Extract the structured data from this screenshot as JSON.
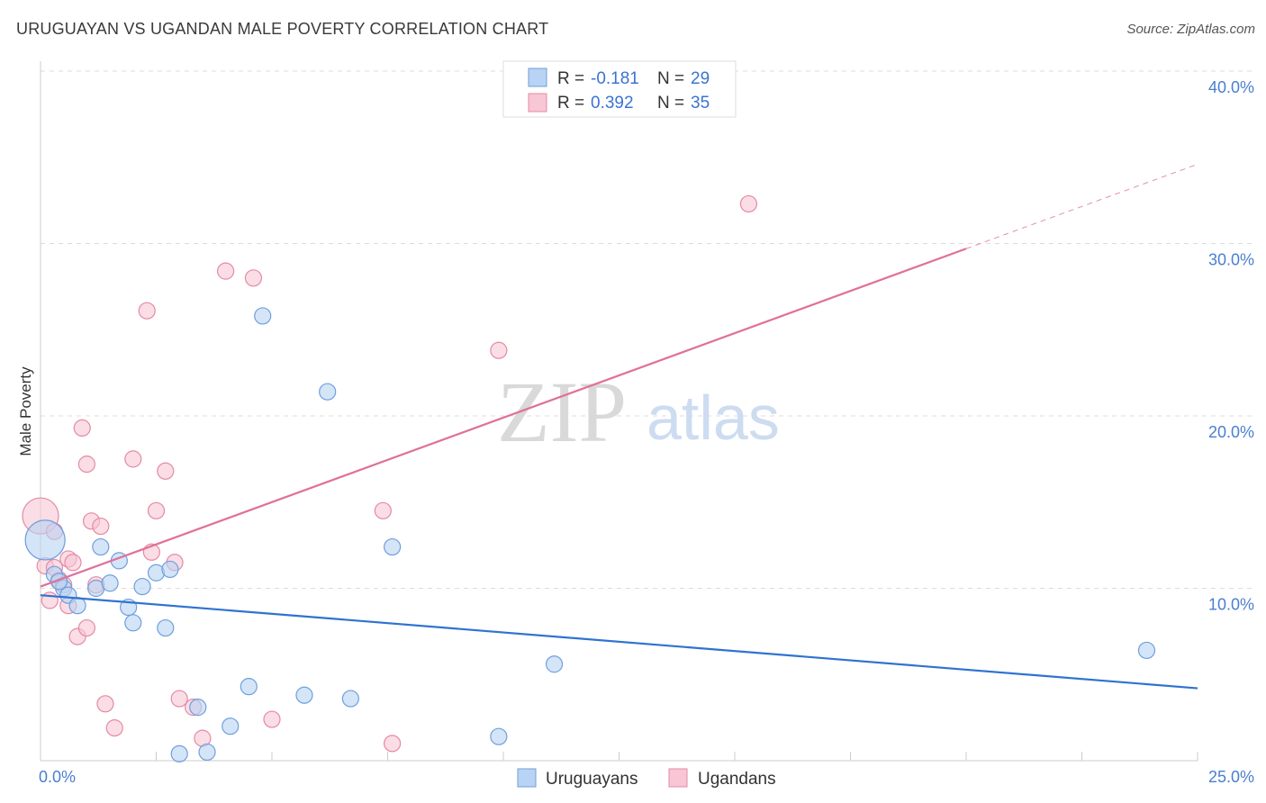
{
  "title": "URUGUAYAN VS UGANDAN MALE POVERTY CORRELATION CHART",
  "source": "Source: ZipAtlas.com",
  "watermark": {
    "zip": "ZIP",
    "atlas": "atlas"
  },
  "colors": {
    "blue_fill": "#b8d3f4",
    "blue_stroke": "#6f9fdc",
    "blue_line": "#2f73d0",
    "pink_fill": "#f8c6d4",
    "pink_stroke": "#e48aa6",
    "pink_line": "#e0709a",
    "grid": "#dddddd",
    "tick_label": "#4a7fd0"
  },
  "legend_box": {
    "rows": [
      {
        "r_label": "R = ",
        "r_value": "-0.181",
        "n_label": "N = ",
        "n_value": "29"
      },
      {
        "r_label": "R = ",
        "r_value": "0.392",
        "n_label": "N = ",
        "n_value": "35"
      }
    ]
  },
  "chart_data": {
    "type": "scatter",
    "title": "URUGUAYAN VS UGANDAN MALE POVERTY CORRELATION CHART",
    "xlabel": "",
    "ylabel": "Male Poverty",
    "xlim": [
      0,
      25
    ],
    "ylim": [
      0,
      40
    ],
    "y_ticks": [
      10,
      20,
      30,
      40
    ],
    "y_tick_labels": [
      "10.0%",
      "20.0%",
      "30.0%",
      "40.0%"
    ],
    "x_tick_labels": [
      "0.0%",
      "25.0%"
    ],
    "series": [
      {
        "name": "Uruguayans",
        "r": -0.181,
        "n": 29,
        "trend": {
          "x0": 0,
          "y0": 9.6,
          "x1": 25,
          "y1": 4.2
        },
        "points": [
          [
            0.1,
            12.8,
            22
          ],
          [
            0.3,
            10.8,
            9
          ],
          [
            0.5,
            10.0,
            9
          ],
          [
            0.6,
            9.6,
            9
          ],
          [
            0.8,
            9.0,
            9
          ],
          [
            1.2,
            10.0,
            9
          ],
          [
            1.3,
            12.4,
            9
          ],
          [
            1.5,
            10.3,
            9
          ],
          [
            1.7,
            11.6,
            9
          ],
          [
            1.9,
            8.9,
            9
          ],
          [
            2.0,
            8.0,
            9
          ],
          [
            2.2,
            10.1,
            9
          ],
          [
            2.5,
            10.9,
            9
          ],
          [
            2.7,
            7.7,
            9
          ],
          [
            2.8,
            11.1,
            9
          ],
          [
            3.0,
            0.4,
            9
          ],
          [
            3.4,
            3.1,
            9
          ],
          [
            3.6,
            0.5,
            9
          ],
          [
            4.1,
            2.0,
            9
          ],
          [
            4.5,
            4.3,
            9
          ],
          [
            4.8,
            25.8,
            9
          ],
          [
            5.7,
            3.8,
            9
          ],
          [
            6.2,
            21.4,
            9
          ],
          [
            6.7,
            3.6,
            9
          ],
          [
            7.6,
            12.4,
            9
          ],
          [
            9.9,
            1.4,
            9
          ],
          [
            11.1,
            5.6,
            9
          ],
          [
            23.9,
            6.4,
            9
          ],
          [
            0.4,
            10.4,
            9
          ]
        ]
      },
      {
        "name": "Ugandans",
        "r": 0.392,
        "n": 35,
        "trend": {
          "x0": 0,
          "y0": 10.1,
          "x1": 20,
          "y1": 29.7
        },
        "trend_dashed": {
          "x0": 20,
          "y0": 29.7,
          "x1": 25,
          "y1": 34.6
        },
        "points": [
          [
            0.0,
            14.2,
            20
          ],
          [
            0.1,
            11.3,
            9
          ],
          [
            0.2,
            9.3,
            9
          ],
          [
            0.3,
            13.3,
            9
          ],
          [
            0.4,
            10.5,
            9
          ],
          [
            0.5,
            10.2,
            9
          ],
          [
            0.6,
            9.0,
            9
          ],
          [
            0.6,
            11.7,
            9
          ],
          [
            0.7,
            11.5,
            9
          ],
          [
            0.8,
            7.2,
            9
          ],
          [
            0.9,
            19.3,
            9
          ],
          [
            1.0,
            17.2,
            9
          ],
          [
            1.0,
            7.7,
            9
          ],
          [
            1.1,
            13.9,
            9
          ],
          [
            1.2,
            10.2,
            9
          ],
          [
            1.3,
            13.6,
            9
          ],
          [
            1.4,
            3.3,
            9
          ],
          [
            1.6,
            1.9,
            9
          ],
          [
            2.0,
            17.5,
            9
          ],
          [
            2.3,
            26.1,
            9
          ],
          [
            2.4,
            12.1,
            9
          ],
          [
            2.5,
            14.5,
            9
          ],
          [
            2.7,
            16.8,
            9
          ],
          [
            2.9,
            11.5,
            9
          ],
          [
            3.0,
            3.6,
            9
          ],
          [
            3.3,
            3.1,
            9
          ],
          [
            3.5,
            1.3,
            9
          ],
          [
            4.0,
            28.4,
            9
          ],
          [
            4.6,
            28.0,
            9
          ],
          [
            5.0,
            2.4,
            9
          ],
          [
            7.4,
            14.5,
            9
          ],
          [
            7.6,
            1.0,
            9
          ],
          [
            9.9,
            23.8,
            9
          ],
          [
            15.3,
            32.3,
            9
          ],
          [
            0.3,
            11.2,
            9
          ]
        ]
      }
    ],
    "legend": [
      "Uruguayans",
      "Ugandans"
    ],
    "legend_placement": "bottom-center",
    "grid": true
  }
}
